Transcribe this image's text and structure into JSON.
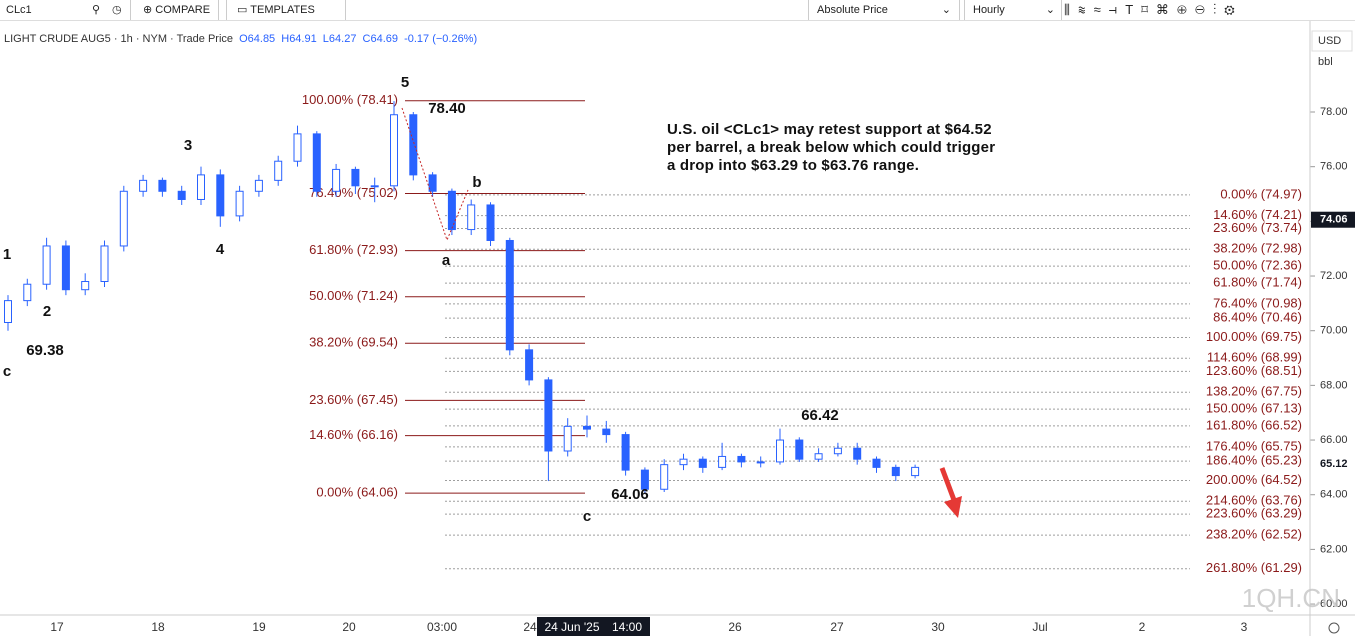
{
  "toolbar": {
    "symbol": "CLc1",
    "compare": "COMPARE",
    "templates": "TEMPLATES",
    "price_mode": "Absolute Price",
    "interval": "Hourly"
  },
  "legend": {
    "name": "LIGHT CRUDE AUG5 · 1h · NYM · Trade Price",
    "open": "O64.85",
    "high": "H64.91",
    "low": "L64.27",
    "close": "C64.69",
    "change": "-0.17 (−0.26%)"
  },
  "chart_data": {
    "type": "candlestick",
    "candles": [
      [
        70.3,
        71.3,
        70.0,
        71.1
      ],
      [
        71.1,
        71.9,
        70.9,
        71.7
      ],
      [
        71.7,
        73.4,
        71.5,
        73.1
      ],
      [
        73.1,
        73.3,
        71.3,
        71.5
      ],
      [
        71.5,
        72.1,
        71.3,
        71.8
      ],
      [
        71.8,
        73.3,
        71.6,
        73.1
      ],
      [
        73.1,
        75.3,
        72.9,
        75.1
      ],
      [
        75.1,
        75.7,
        74.9,
        75.5
      ],
      [
        75.5,
        75.6,
        74.9,
        75.1
      ],
      [
        75.1,
        75.3,
        74.6,
        74.8
      ],
      [
        74.8,
        76.0,
        74.6,
        75.7
      ],
      [
        75.7,
        75.9,
        73.8,
        74.2
      ],
      [
        74.2,
        75.3,
        74.0,
        75.1
      ],
      [
        75.1,
        75.7,
        74.9,
        75.5
      ],
      [
        75.5,
        76.4,
        75.3,
        76.2
      ],
      [
        76.2,
        77.5,
        76.0,
        77.2
      ],
      [
        77.2,
        77.3,
        74.9,
        75.1
      ],
      [
        75.1,
        76.1,
        74.9,
        75.9
      ],
      [
        75.9,
        76.0,
        75.0,
        75.3
      ],
      [
        75.3,
        75.6,
        74.7,
        75.3
      ],
      [
        75.3,
        78.4,
        75.1,
        77.9
      ],
      [
        77.9,
        78.0,
        75.5,
        75.7
      ],
      [
        75.7,
        75.8,
        74.9,
        75.1
      ],
      [
        75.1,
        75.2,
        73.5,
        73.7
      ],
      [
        73.7,
        74.8,
        73.5,
        74.6
      ],
      [
        74.6,
        74.7,
        73.1,
        73.3
      ],
      [
        73.3,
        73.4,
        69.1,
        69.3
      ],
      [
        69.3,
        69.5,
        68.0,
        68.2
      ],
      [
        68.2,
        68.3,
        64.5,
        65.6
      ],
      [
        65.6,
        66.8,
        65.4,
        66.5
      ],
      [
        66.5,
        66.9,
        66.1,
        66.4
      ],
      [
        66.4,
        66.7,
        65.9,
        66.2
      ],
      [
        66.2,
        66.3,
        64.7,
        64.9
      ],
      [
        64.9,
        65.0,
        64.06,
        64.2
      ],
      [
        64.2,
        65.3,
        64.1,
        65.1
      ],
      [
        65.1,
        65.5,
        64.9,
        65.3
      ],
      [
        65.3,
        65.4,
        64.8,
        65.0
      ],
      [
        65.0,
        65.9,
        64.9,
        65.4
      ],
      [
        65.4,
        65.5,
        65.0,
        65.2
      ],
      [
        65.2,
        65.4,
        65.0,
        65.2
      ],
      [
        65.2,
        66.42,
        65.1,
        66.0
      ],
      [
        66.0,
        66.1,
        65.2,
        65.3
      ],
      [
        65.3,
        65.7,
        65.2,
        65.5
      ],
      [
        65.5,
        65.9,
        65.4,
        65.7
      ],
      [
        65.7,
        65.9,
        65.1,
        65.3
      ],
      [
        65.3,
        65.4,
        64.8,
        65.0
      ],
      [
        65.0,
        65.1,
        64.5,
        64.7
      ],
      [
        64.7,
        65.1,
        64.6,
        65.0
      ]
    ],
    "color": "#2962ff",
    "ylim": [
      59.6,
      81.0
    ],
    "yticks": [
      {
        "value": 78,
        "label": "78.00"
      },
      {
        "value": 76,
        "label": "76.00"
      },
      {
        "value": 74,
        "label": "74.00"
      },
      {
        "value": 72,
        "label": "72.00"
      },
      {
        "value": 70,
        "label": "70.00"
      },
      {
        "value": 68,
        "label": "68.00"
      },
      {
        "value": 66,
        "label": "66.00"
      },
      {
        "value": 64,
        "label": "64.00"
      },
      {
        "value": 62,
        "label": "62.00"
      },
      {
        "value": 60,
        "label": "60.00"
      }
    ],
    "currency": "USD",
    "unit": "bbl",
    "price_tags": [
      74.06,
      65.12
    ],
    "retracement": [
      {
        "value": 78.41,
        "label": "100.00% (78.41)"
      },
      {
        "value": 75.02,
        "label": "76.40% (75.02)"
      },
      {
        "value": 72.93,
        "label": "61.80% (72.93)"
      },
      {
        "value": 71.24,
        "label": "50.00% (71.24)"
      },
      {
        "value": 69.54,
        "label": "38.20% (69.54)"
      },
      {
        "value": 67.45,
        "label": "23.60% (67.45)"
      },
      {
        "value": 66.16,
        "label": "14.60% (66.16)"
      },
      {
        "value": 64.06,
        "label": "0.00% (64.06)"
      }
    ],
    "extension": [
      {
        "value": 74.97,
        "label": "0.00% (74.97)"
      },
      {
        "value": 74.21,
        "label": "14.60% (74.21)"
      },
      {
        "value": 73.74,
        "label": "23.60% (73.74)"
      },
      {
        "value": 72.98,
        "label": "38.20% (72.98)"
      },
      {
        "value": 72.36,
        "label": "50.00% (72.36)"
      },
      {
        "value": 71.74,
        "label": "61.80% (71.74)"
      },
      {
        "value": 70.98,
        "label": "76.40% (70.98)"
      },
      {
        "value": 70.46,
        "label": "86.40% (70.46)"
      },
      {
        "value": 69.75,
        "label": "100.00% (69.75)"
      },
      {
        "value": 68.99,
        "label": "114.60% (68.99)"
      },
      {
        "value": 68.51,
        "label": "123.60% (68.51)"
      },
      {
        "value": 67.75,
        "label": "138.20% (67.75)"
      },
      {
        "value": 67.13,
        "label": "150.00% (67.13)"
      },
      {
        "value": 66.52,
        "label": "161.80% (66.52)"
      },
      {
        "value": 65.75,
        "label": "176.40% (65.75)"
      },
      {
        "value": 65.23,
        "label": "186.40% (65.23)"
      },
      {
        "value": 64.52,
        "label": "200.00% (64.52)"
      },
      {
        "value": 63.76,
        "label": "214.60% (63.76)"
      },
      {
        "value": 63.29,
        "label": "223.60% (63.29)"
      },
      {
        "value": 62.52,
        "label": "238.20% (62.52)"
      },
      {
        "value": 61.29,
        "label": "261.80% (61.29)"
      }
    ]
  },
  "annotations": [
    "1",
    "2",
    "3",
    "4",
    "5",
    "a",
    "b",
    "c",
    "c",
    "69.38",
    "78.40",
    "64.06",
    "66.42"
  ],
  "note": [
    "U.S. oil <CLc1> may retest support at $64.52",
    "per barrel, a break below which could trigger",
    "a drop into $63.29 to $63.76 range."
  ],
  "time_axis": [
    "17",
    "18",
    "19",
    "20",
    "03:00",
    "24",
    "26",
    "27",
    "30",
    "Jul",
    "2",
    "3"
  ],
  "crosshair_time": [
    "24 Jun '25",
    "14:00"
  ],
  "watermark": "1QH.CN"
}
